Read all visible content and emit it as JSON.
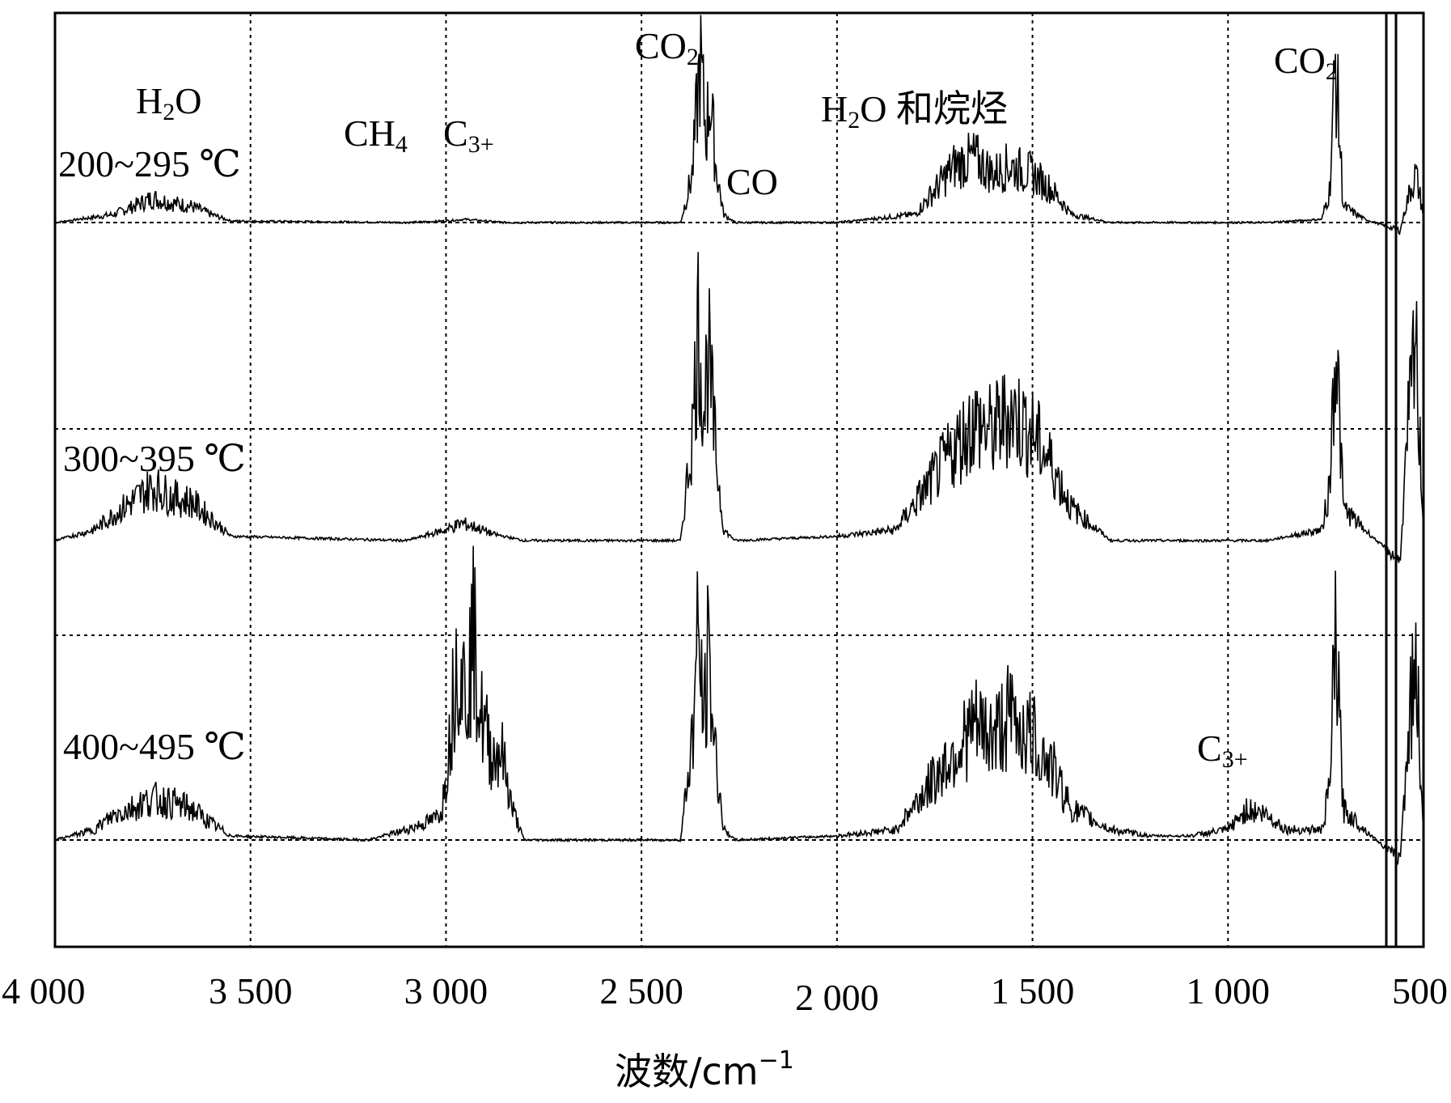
{
  "chart_data": {
    "type": "line",
    "xlabel": "波数/cm",
    "xlabel_sup": "−1",
    "xlim": [
      4000,
      500
    ],
    "x_ticks": [
      {
        "value": 4000,
        "label": "4 000"
      },
      {
        "value": 3500,
        "label": "3 500"
      },
      {
        "value": 3000,
        "label": "3 000"
      },
      {
        "value": 2500,
        "label": "2 500"
      },
      {
        "value": 2000,
        "label": "2 000"
      },
      {
        "value": 1500,
        "label": "1 500"
      },
      {
        "value": 1000,
        "label": "1 000"
      },
      {
        "value": 500,
        "label": "500"
      }
    ],
    "grid": true,
    "series": [
      {
        "name": "200~295 ℃",
        "baseline": 0,
        "points": [
          [
            4000,
            0
          ],
          [
            3850,
            0.05
          ],
          [
            3750,
            0.15
          ],
          [
            3700,
            0.12
          ],
          [
            3650,
            0.1
          ],
          [
            3600,
            0.05
          ],
          [
            3550,
            0.01
          ],
          [
            3100,
            0
          ],
          [
            3000,
            0.01
          ],
          [
            2950,
            0.02
          ],
          [
            2850,
            0
          ],
          [
            2400,
            0
          ],
          [
            2370,
            0.3
          ],
          [
            2350,
            1.0
          ],
          [
            2335,
            0.55
          ],
          [
            2325,
            0.8
          ],
          [
            2310,
            0.35
          ],
          [
            2290,
            0.05
          ],
          [
            2260,
            0
          ],
          [
            2000,
            0
          ],
          [
            1800,
            0.05
          ],
          [
            1700,
            0.35
          ],
          [
            1650,
            0.4
          ],
          [
            1600,
            0.3
          ],
          [
            1560,
            0.35
          ],
          [
            1500,
            0.3
          ],
          [
            1450,
            0.2
          ],
          [
            1400,
            0.05
          ],
          [
            1300,
            0
          ],
          [
            900,
            0
          ],
          [
            760,
            0.02
          ],
          [
            740,
            0.2
          ],
          [
            725,
            1.0
          ],
          [
            705,
            0.1
          ],
          [
            650,
            0.02
          ],
          [
            560,
            -0.05
          ],
          [
            540,
            0.15
          ],
          [
            520,
            0.3
          ],
          [
            500,
            0.05
          ]
        ]
      },
      {
        "name": "300~395 ℃",
        "baseline": 0,
        "points": [
          [
            4000,
            0
          ],
          [
            3900,
            0.05
          ],
          [
            3850,
            0.12
          ],
          [
            3750,
            0.25
          ],
          [
            3700,
            0.2
          ],
          [
            3650,
            0.18
          ],
          [
            3600,
            0.1
          ],
          [
            3550,
            0.02
          ],
          [
            3100,
            0
          ],
          [
            3000,
            0.05
          ],
          [
            2960,
            0.08
          ],
          [
            2920,
            0.06
          ],
          [
            2880,
            0.03
          ],
          [
            2800,
            0
          ],
          [
            2400,
            0
          ],
          [
            2370,
            0.5
          ],
          [
            2355,
            1.0
          ],
          [
            2340,
            0.6
          ],
          [
            2330,
            0.9
          ],
          [
            2310,
            0.4
          ],
          [
            2290,
            0.05
          ],
          [
            2260,
            0
          ],
          [
            2000,
            0.02
          ],
          [
            1850,
            0.05
          ],
          [
            1750,
            0.3
          ],
          [
            1650,
            0.55
          ],
          [
            1600,
            0.5
          ],
          [
            1560,
            0.6
          ],
          [
            1500,
            0.5
          ],
          [
            1450,
            0.35
          ],
          [
            1400,
            0.15
          ],
          [
            1300,
            0
          ],
          [
            900,
            0
          ],
          [
            760,
            0.05
          ],
          [
            740,
            0.25
          ],
          [
            725,
            1.0
          ],
          [
            705,
            0.15
          ],
          [
            650,
            0.05
          ],
          [
            560,
            -0.1
          ],
          [
            540,
            0.5
          ],
          [
            520,
            0.9
          ],
          [
            500,
            0.05
          ]
        ]
      },
      {
        "name": "400~495 ℃",
        "baseline": 0,
        "points": [
          [
            4000,
            0
          ],
          [
            3900,
            0.05
          ],
          [
            3850,
            0.12
          ],
          [
            3750,
            0.2
          ],
          [
            3700,
            0.18
          ],
          [
            3650,
            0.15
          ],
          [
            3600,
            0.08
          ],
          [
            3550,
            0.02
          ],
          [
            3200,
            0
          ],
          [
            3100,
            0.05
          ],
          [
            3030,
            0.1
          ],
          [
            3010,
            0.15
          ],
          [
            2990,
            0.5
          ],
          [
            2970,
            0.95
          ],
          [
            2950,
            0.7
          ],
          [
            2930,
            1.0
          ],
          [
            2910,
            0.6
          ],
          [
            2880,
            0.4
          ],
          [
            2860,
            0.45
          ],
          [
            2830,
            0.15
          ],
          [
            2800,
            0
          ],
          [
            2400,
            0
          ],
          [
            2370,
            0.5
          ],
          [
            2355,
            1.0
          ],
          [
            2340,
            0.55
          ],
          [
            2330,
            0.9
          ],
          [
            2310,
            0.4
          ],
          [
            2290,
            0.05
          ],
          [
            2260,
            0
          ],
          [
            2000,
            0.02
          ],
          [
            1850,
            0.05
          ],
          [
            1750,
            0.3
          ],
          [
            1650,
            0.55
          ],
          [
            1600,
            0.5
          ],
          [
            1560,
            0.6
          ],
          [
            1500,
            0.5
          ],
          [
            1450,
            0.35
          ],
          [
            1400,
            0.15
          ],
          [
            1300,
            0.05
          ],
          [
            1200,
            0.02
          ],
          [
            1100,
            0.02
          ],
          [
            1000,
            0.05
          ],
          [
            950,
            0.15
          ],
          [
            900,
            0.12
          ],
          [
            850,
            0.05
          ],
          [
            760,
            0.05
          ],
          [
            740,
            0.25
          ],
          [
            725,
            1.0
          ],
          [
            705,
            0.15
          ],
          [
            650,
            0.05
          ],
          [
            560,
            -0.1
          ],
          [
            540,
            0.5
          ],
          [
            520,
            0.9
          ],
          [
            500,
            0.05
          ]
        ]
      }
    ],
    "annotations": [
      {
        "id": "h2o-left",
        "text": "H",
        "sub": "2",
        "tail": "O"
      },
      {
        "id": "ch4",
        "text": "CH",
        "sub": "4"
      },
      {
        "id": "c3-top",
        "text": "C",
        "sub": "3+"
      },
      {
        "id": "co2-top",
        "text": "CO",
        "sub": "2"
      },
      {
        "id": "co",
        "text": "CO"
      },
      {
        "id": "h2o-alkane",
        "text": "H",
        "sub": "2",
        "tail": "O 和烷烃"
      },
      {
        "id": "co2-right",
        "text": "CO",
        "sub": "2"
      },
      {
        "id": "c3-bottom",
        "text": "C",
        "sub": "3+"
      }
    ]
  }
}
